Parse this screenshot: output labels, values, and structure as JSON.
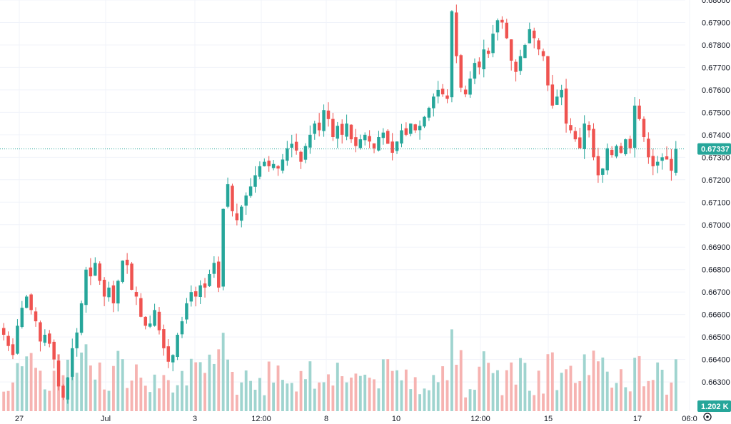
{
  "chart_data": {
    "type": "candlestick",
    "title": "",
    "xlabel": "",
    "ylabel": "",
    "ylim": [
      0.6617,
      0.68
    ],
    "grid": true,
    "colors": {
      "up": "#26a69a",
      "down": "#ef5350",
      "volume_up": "#9fd4cf",
      "volume_down": "#f6b3b1",
      "grid": "#f0f3fa",
      "badge": "#26a69a",
      "text": "#131722"
    },
    "y_ticks": [
      "0.68000",
      "0.67900",
      "0.67800",
      "0.67700",
      "0.67600",
      "0.67500",
      "0.67400",
      "0.67300",
      "0.67200",
      "0.67100",
      "0.67000",
      "0.66900",
      "0.66800",
      "0.66700",
      "0.66600",
      "0.66500",
      "0.66400",
      "0.66300"
    ],
    "x_ticks": [
      "27",
      "Jul",
      "3",
      "12:00",
      "8",
      "10",
      "12:00",
      "15",
      "17",
      "06:0"
    ],
    "last_price": 0.67337,
    "last_price_label": "0.67337",
    "volume_label": "1.202 K",
    "settings_icon": "gear-icon",
    "close_series": [
      0.6651,
      0.6646,
      0.6642,
      0.6655,
      0.6663,
      0.6668,
      0.6662,
      0.6657,
      0.6648,
      0.6651,
      0.6647,
      0.664,
      0.6628,
      0.6623,
      0.6632,
      0.6645,
      0.6652,
      0.6665,
      0.668,
      0.6677,
      0.6683,
      0.6675,
      0.6668,
      0.6672,
      0.6665,
      0.6675,
      0.6684,
      0.6682,
      0.6671,
      0.6668,
      0.6659,
      0.6655,
      0.6656,
      0.6662,
      0.6653,
      0.6645,
      0.6639,
      0.6642,
      0.6651,
      0.6657,
      0.6665,
      0.667,
      0.6668,
      0.6673,
      0.6672,
      0.6678,
      0.6683,
      0.6672,
      0.6707,
      0.6718,
      0.6706,
      0.6702,
      0.6708,
      0.6713,
      0.6717,
      0.6722,
      0.6726,
      0.6728,
      0.6726,
      0.6727,
      0.6725,
      0.6729,
      0.6734,
      0.6736,
      0.6733,
      0.6728,
      0.6735,
      0.674,
      0.6745,
      0.6742,
      0.6751,
      0.6747,
      0.6739,
      0.6744,
      0.674,
      0.6745,
      0.6738,
      0.6735,
      0.6738,
      0.674,
      0.6737,
      0.6734,
      0.6739,
      0.6741,
      0.6736,
      0.6732,
      0.6737,
      0.6742,
      0.674,
      0.6745,
      0.6742,
      0.6744,
      0.6748,
      0.6752,
      0.6757,
      0.676,
      0.6758,
      0.6756,
      0.6795,
      0.6775,
      0.6761,
      0.6758,
      0.6765,
      0.6772,
      0.677,
      0.6778,
      0.6776,
      0.6785,
      0.6791,
      0.679,
      0.6783,
      0.6773,
      0.6768,
      0.6775,
      0.678,
      0.6787,
      0.6783,
      0.6778,
      0.6775,
      0.6762,
      0.6753,
      0.6757,
      0.676,
      0.6745,
      0.6742,
      0.6738,
      0.6734,
      0.6745,
      0.6742,
      0.673,
      0.6722,
      0.6725,
      0.6734,
      0.6731,
      0.6735,
      0.6732,
      0.6738,
      0.6734,
      0.6753,
      0.6747,
      0.6739,
      0.673,
      0.6726,
      0.6728,
      0.673,
      0.6729,
      0.6724,
      0.67337
    ]
  }
}
